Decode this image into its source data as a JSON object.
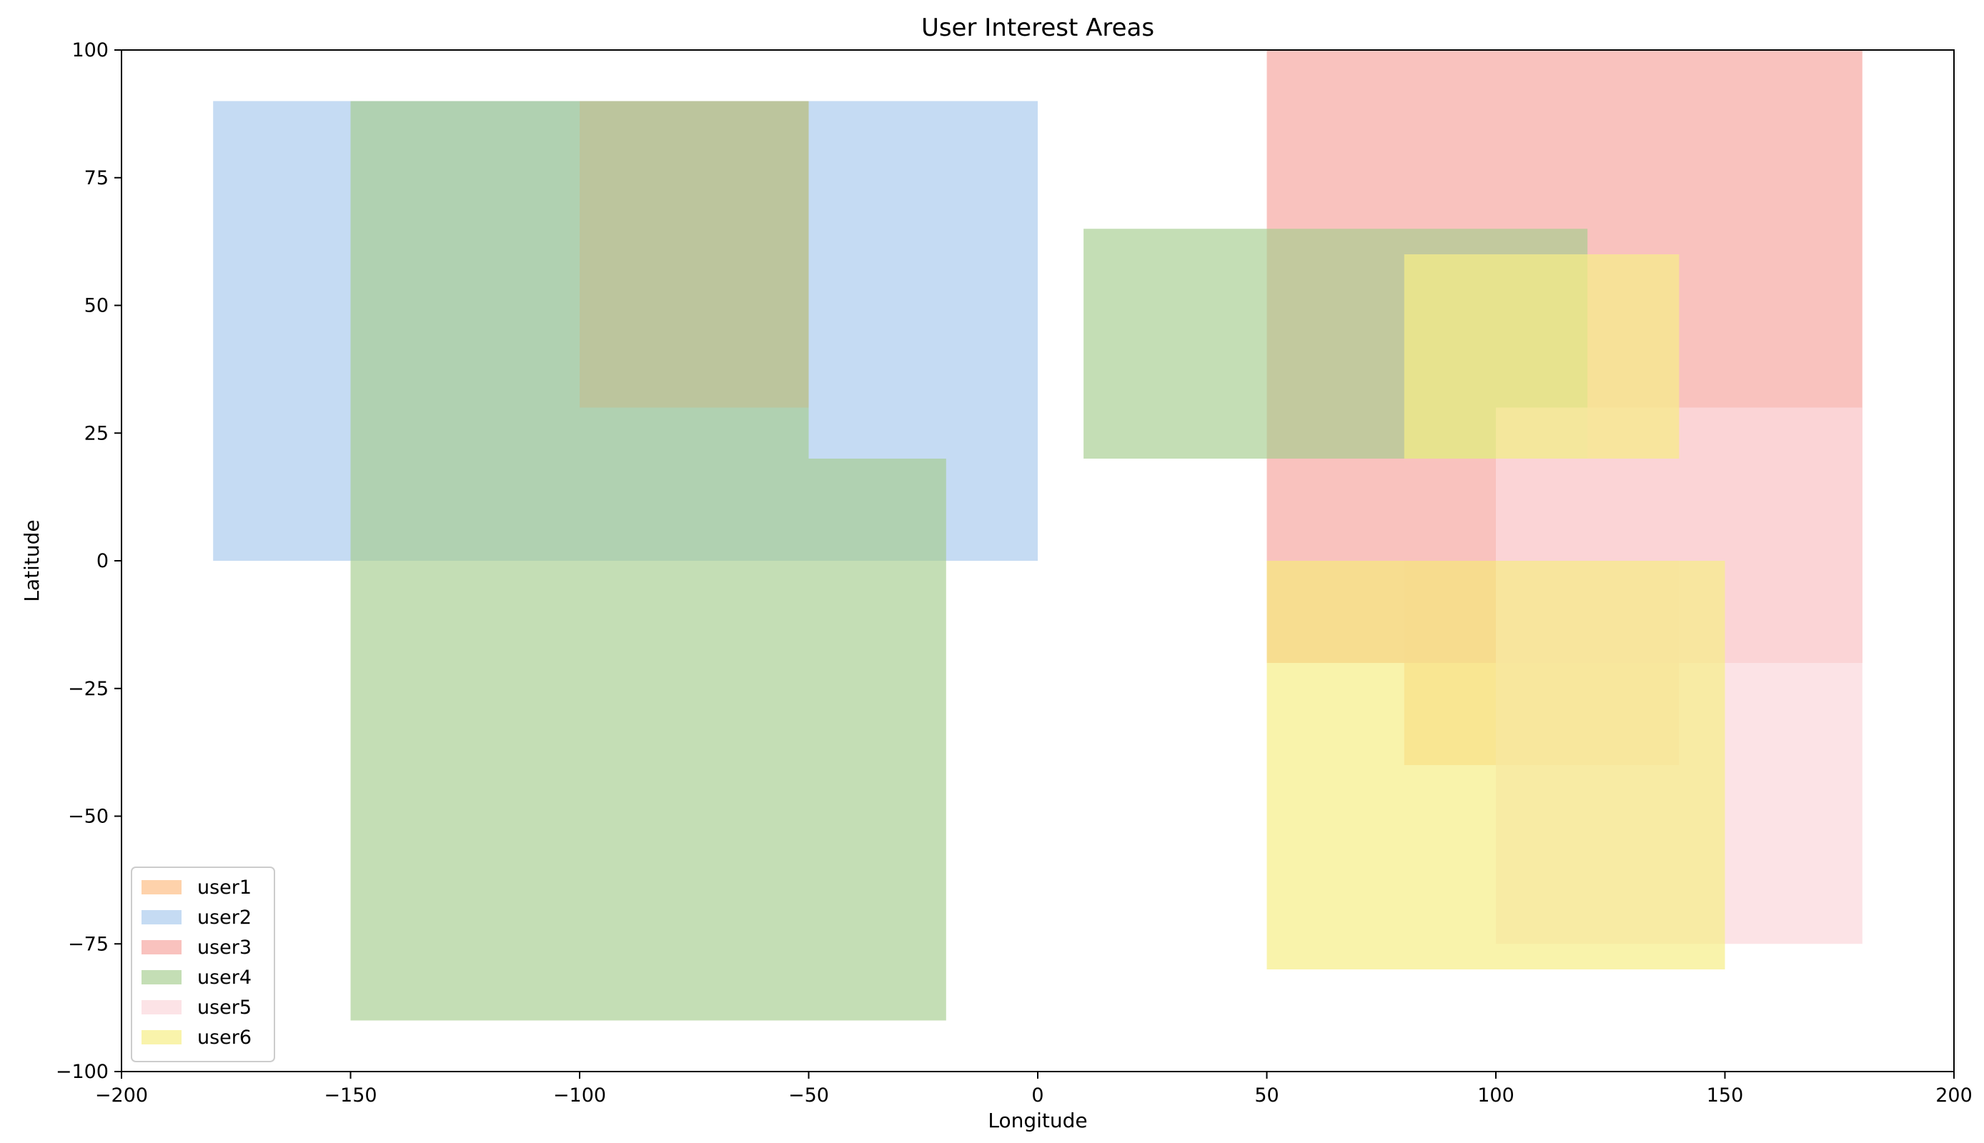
{
  "chart_data": {
    "type": "area",
    "title": "User Interest Areas",
    "xlabel": "Longitude",
    "ylabel": "Latitude",
    "xlim": [
      -200,
      200
    ],
    "ylim": [
      -100,
      100
    ],
    "xticks": [
      -200,
      -150,
      -100,
      -50,
      0,
      50,
      100,
      150,
      200
    ],
    "yticks": [
      -100,
      -75,
      -50,
      -25,
      0,
      25,
      50,
      75,
      100
    ],
    "grid": false,
    "legend_position": "lower-left",
    "series": [
      {
        "name": "user1",
        "color": "#fdbf87",
        "opacity": 0.7,
        "rectangles": [
          {
            "lon_min": 50,
            "lon_max": 100,
            "lat_min": -20,
            "lat_max": 0
          },
          {
            "lon_min": 80,
            "lon_max": 140,
            "lat_min": -40,
            "lat_max": 0
          },
          {
            "lon_min": 120,
            "lon_max": 140,
            "lat_min": 20,
            "lat_max": 30
          }
        ]
      },
      {
        "name": "user2",
        "color": "#a6c8ec",
        "opacity": 0.65,
        "rectangles": [
          {
            "lon_min": -180,
            "lon_max": 0,
            "lat_min": 0,
            "lat_max": 90
          }
        ]
      },
      {
        "name": "user3",
        "color": "#f6a8a2",
        "opacity": 0.7,
        "rectangles": [
          {
            "lon_min": 50,
            "lon_max": 180,
            "lat_min": -20,
            "lat_max": 100
          },
          {
            "lon_min": -100,
            "lon_max": -50,
            "lat_min": 30,
            "lat_max": 90
          }
        ]
      },
      {
        "name": "user4",
        "color": "#a5cd8e",
        "opacity": 0.65,
        "rectangles": [
          {
            "lon_min": -150,
            "lon_max": -20,
            "lat_min": -90,
            "lat_max": 20
          },
          {
            "lon_min": 10,
            "lon_max": 120,
            "lat_min": 20,
            "lat_max": 65
          },
          {
            "lon_min": -150,
            "lon_max": -50,
            "lat_min": 20,
            "lat_max": 90
          }
        ]
      },
      {
        "name": "user5",
        "color": "#fbd9de",
        "opacity": 0.75,
        "rectangles": [
          {
            "lon_min": 100,
            "lon_max": 180,
            "lat_min": -75,
            "lat_max": 30
          }
        ]
      },
      {
        "name": "user6",
        "color": "#f6ee88",
        "opacity": 0.7,
        "rectangles": [
          {
            "lon_min": 50,
            "lon_max": 150,
            "lat_min": -80,
            "lat_max": 0
          },
          {
            "lon_min": 80,
            "lon_max": 140,
            "lat_min": 20,
            "lat_max": 60
          }
        ]
      }
    ]
  }
}
